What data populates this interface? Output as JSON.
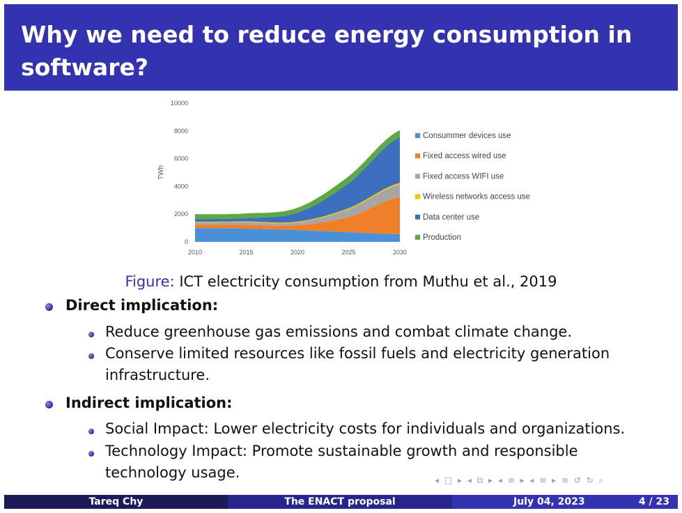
{
  "slide": {
    "title": "Why we need to reduce energy consumption in software?"
  },
  "figure": {
    "caption_label": "Figure:",
    "caption_text": "ICT electricity consumption from Muthu et al., 2019"
  },
  "chart_data": {
    "type": "area",
    "ylabel": "TWh",
    "xlabel": "",
    "x": [
      2010,
      2015,
      2020,
      2025,
      2030
    ],
    "x_ticks": [
      "2010",
      "2015",
      "2020",
      "2025",
      "2030"
    ],
    "y_ticks": [
      "0",
      "2000",
      "4000",
      "6000",
      "8000",
      "10000"
    ],
    "ylim": [
      0,
      10000
    ],
    "stacked": true,
    "legend_position": "right",
    "series": [
      {
        "name": "Consummer devices use",
        "color": "#4a90d9",
        "values": [
          1000,
          950,
          850,
          700,
          550
        ]
      },
      {
        "name": "Fixed access wired use",
        "color": "#f07f2a",
        "values": [
          250,
          280,
          350,
          1100,
          2700
        ]
      },
      {
        "name": "Fixed access WIFI use",
        "color": "#a6a6a6",
        "values": [
          150,
          180,
          200,
          550,
          900
        ]
      },
      {
        "name": "Wireless networks access use",
        "color": "#ffc000",
        "values": [
          50,
          60,
          60,
          80,
          100
        ]
      },
      {
        "name": "Data center use",
        "color": "#3d6fbf",
        "values": [
          200,
          250,
          650,
          1800,
          3300
        ]
      },
      {
        "name": "Production",
        "color": "#5ea843",
        "values": [
          350,
          330,
          350,
          500,
          500
        ]
      }
    ]
  },
  "bullets": [
    {
      "heading": "Direct implication:",
      "items": [
        "Reduce greenhouse gas emissions and combat climate change.",
        "Conserve limited resources like fossil fuels and electricity generation",
        "infrastructure."
      ]
    },
    {
      "heading": "Indirect implication:",
      "items": [
        "Social Impact: Lower electricity costs for individuals and organizations.",
        "Technology Impact: Promote sustainable growth and responsible",
        "technology usage."
      ]
    }
  ],
  "footer": {
    "author": "Tareq Chy",
    "talk_title": "The ENACT proposal",
    "date": "July 04, 2023",
    "page": "4 / 23"
  },
  "nav_symbols": "◂ □ ▸ ◂ ⧉ ▸ ◂ ≡ ▸ ◂ ≡ ▸   ≡   ↺ ↻ ⌕"
}
